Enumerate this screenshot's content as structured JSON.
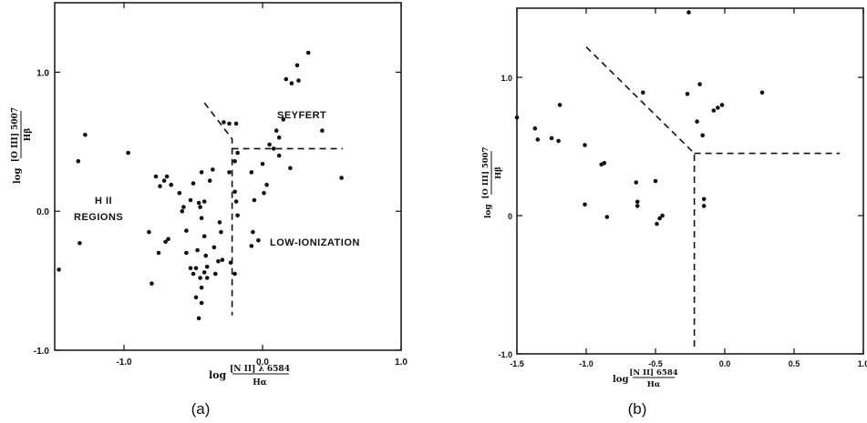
{
  "chart_data": [
    {
      "type": "scatter",
      "panel_label": "(a)",
      "xlim": [
        -1.5,
        1.0
      ],
      "ylim": [
        -1.0,
        1.5
      ],
      "x_ticks": [
        -1.0,
        0.0,
        1.0
      ],
      "x_tick_labels": [
        "-1.0",
        "0.0",
        "1.0"
      ],
      "y_ticks": [
        -1.0,
        0.0,
        1.0
      ],
      "y_tick_labels": [
        "-1.0",
        "0.0",
        "1.0"
      ],
      "xlabel": {
        "prefix": "log",
        "numerator": "[N II] λ 6584",
        "denominator": "Hα"
      },
      "ylabel": {
        "prefix": "log",
        "numerator": "[O III] 5007",
        "denominator": "Hβ"
      },
      "region_labels": [
        "SEYFERT",
        "H II",
        "REGIONS",
        "LOW-IONIZATION"
      ],
      "boundaries": [
        [
          [
            -0.42,
            0.78
          ],
          [
            -0.22,
            0.52
          ],
          [
            -0.22,
            -0.75
          ]
        ],
        [
          [
            -0.22,
            0.45
          ],
          [
            0.58,
            0.45
          ]
        ]
      ],
      "points": [
        [
          -1.47,
          -0.42
        ],
        [
          -1.33,
          0.36
        ],
        [
          -1.28,
          0.55
        ],
        [
          -1.32,
          -0.23
        ],
        [
          -0.97,
          0.42
        ],
        [
          -0.82,
          -0.15
        ],
        [
          -0.8,
          -0.52
        ],
        [
          -0.75,
          -0.3
        ],
        [
          -0.77,
          0.25
        ],
        [
          -0.74,
          0.18
        ],
        [
          -0.71,
          0.22
        ],
        [
          -0.69,
          0.25
        ],
        [
          -0.66,
          0.19
        ],
        [
          -0.68,
          -0.2
        ],
        [
          -0.7,
          -0.22
        ],
        [
          -0.6,
          0.13
        ],
        [
          -0.58,
          0.0
        ],
        [
          -0.57,
          0.03
        ],
        [
          -0.55,
          -0.14
        ],
        [
          -0.52,
          0.08
        ],
        [
          -0.55,
          -0.3
        ],
        [
          -0.52,
          -0.41
        ],
        [
          -0.48,
          -0.41
        ],
        [
          -0.47,
          -0.28
        ],
        [
          -0.46,
          0.06
        ],
        [
          -0.45,
          0.03
        ],
        [
          -0.44,
          -0.05
        ],
        [
          -0.42,
          -0.18
        ],
        [
          -0.41,
          -0.32
        ],
        [
          -0.4,
          -0.4
        ],
        [
          -0.44,
          0.28
        ],
        [
          -0.42,
          0.07
        ],
        [
          -0.38,
          0.22
        ],
        [
          -0.36,
          0.3
        ],
        [
          -0.35,
          -0.26
        ],
        [
          -0.34,
          -0.45
        ],
        [
          -0.32,
          -0.36
        ],
        [
          -0.31,
          -0.08
        ],
        [
          -0.3,
          -0.15
        ],
        [
          -0.29,
          -0.35
        ],
        [
          -0.5,
          0.2
        ],
        [
          -0.5,
          -0.45
        ],
        [
          -0.48,
          -0.62
        ],
        [
          -0.45,
          -0.48
        ],
        [
          -0.44,
          -0.55
        ],
        [
          -0.44,
          -0.66
        ],
        [
          -0.46,
          -0.77
        ],
        [
          -0.42,
          -0.44
        ],
        [
          -0.4,
          -0.48
        ],
        [
          -0.28,
          0.64
        ],
        [
          -0.24,
          0.63
        ],
        [
          -0.19,
          0.63
        ],
        [
          -0.24,
          0.28
        ],
        [
          -0.2,
          0.36
        ],
        [
          -0.18,
          0.42
        ],
        [
          -0.2,
          0.14
        ],
        [
          -0.19,
          0.07
        ],
        [
          -0.18,
          -0.03
        ],
        [
          -0.23,
          -0.37
        ],
        [
          -0.2,
          -0.45
        ],
        [
          -0.08,
          0.28
        ],
        [
          -0.06,
          0.08
        ],
        [
          -0.08,
          -0.25
        ],
        [
          -0.07,
          -0.15
        ],
        [
          -0.03,
          -0.21
        ],
        [
          0.0,
          0.34
        ],
        [
          0.01,
          0.13
        ],
        [
          0.03,
          0.19
        ],
        [
          0.05,
          0.48
        ],
        [
          0.08,
          0.45
        ],
        [
          0.1,
          0.58
        ],
        [
          0.12,
          0.4
        ],
        [
          0.12,
          0.53
        ],
        [
          0.15,
          0.66
        ],
        [
          0.2,
          0.31
        ],
        [
          0.17,
          0.95
        ],
        [
          0.21,
          0.92
        ],
        [
          0.26,
          0.94
        ],
        [
          0.25,
          1.05
        ],
        [
          0.33,
          1.14
        ],
        [
          0.43,
          0.58
        ],
        [
          0.57,
          0.24
        ]
      ]
    },
    {
      "type": "scatter",
      "panel_label": "(b)",
      "xlim": [
        -1.5,
        1.0
      ],
      "ylim": [
        -1.0,
        1.5
      ],
      "x_ticks": [
        -1.5,
        -1.0,
        -0.5,
        0.0,
        0.5,
        1.0
      ],
      "x_tick_labels": [
        "-1.5",
        "-1.0",
        "-0.5",
        "0.0",
        "0.5",
        "1.0"
      ],
      "y_ticks": [
        -1.0,
        0.0,
        1.0
      ],
      "y_tick_labels": [
        "-1.0",
        "0",
        "1.0"
      ],
      "xlabel": {
        "prefix": "log",
        "numerator": "[N II] 6584",
        "denominator": "Hα"
      },
      "ylabel": {
        "prefix": "log",
        "numerator": "[O III] 5007",
        "denominator": "Hβ"
      },
      "boundaries": [
        [
          [
            -1.0,
            1.22
          ],
          [
            -0.22,
            0.45
          ],
          [
            -0.22,
            -0.97
          ]
        ],
        [
          [
            -0.22,
            0.45
          ],
          [
            0.83,
            0.45
          ]
        ]
      ],
      "points": [
        [
          -1.5,
          0.71
        ],
        [
          -1.37,
          0.63
        ],
        [
          -1.35,
          0.55
        ],
        [
          -1.25,
          0.56
        ],
        [
          -1.2,
          0.54
        ],
        [
          -1.19,
          0.8
        ],
        [
          -1.01,
          0.51
        ],
        [
          -1.01,
          0.08
        ],
        [
          -0.89,
          0.37
        ],
        [
          -0.87,
          0.38
        ],
        [
          -0.85,
          -0.01
        ],
        [
          -0.64,
          0.24
        ],
        [
          -0.63,
          0.1
        ],
        [
          -0.63,
          0.07
        ],
        [
          -0.59,
          0.89
        ],
        [
          -0.5,
          0.25
        ],
        [
          -0.49,
          -0.06
        ],
        [
          -0.47,
          -0.02
        ],
        [
          -0.45,
          0.0
        ],
        [
          -0.26,
          1.47
        ],
        [
          -0.27,
          0.88
        ],
        [
          -0.2,
          0.68
        ],
        [
          -0.16,
          0.58
        ],
        [
          -0.15,
          0.12
        ],
        [
          -0.15,
          0.07
        ],
        [
          -0.18,
          0.95
        ],
        [
          -0.08,
          0.76
        ],
        [
          -0.05,
          0.78
        ],
        [
          -0.02,
          0.8
        ],
        [
          0.27,
          0.89
        ]
      ]
    }
  ]
}
